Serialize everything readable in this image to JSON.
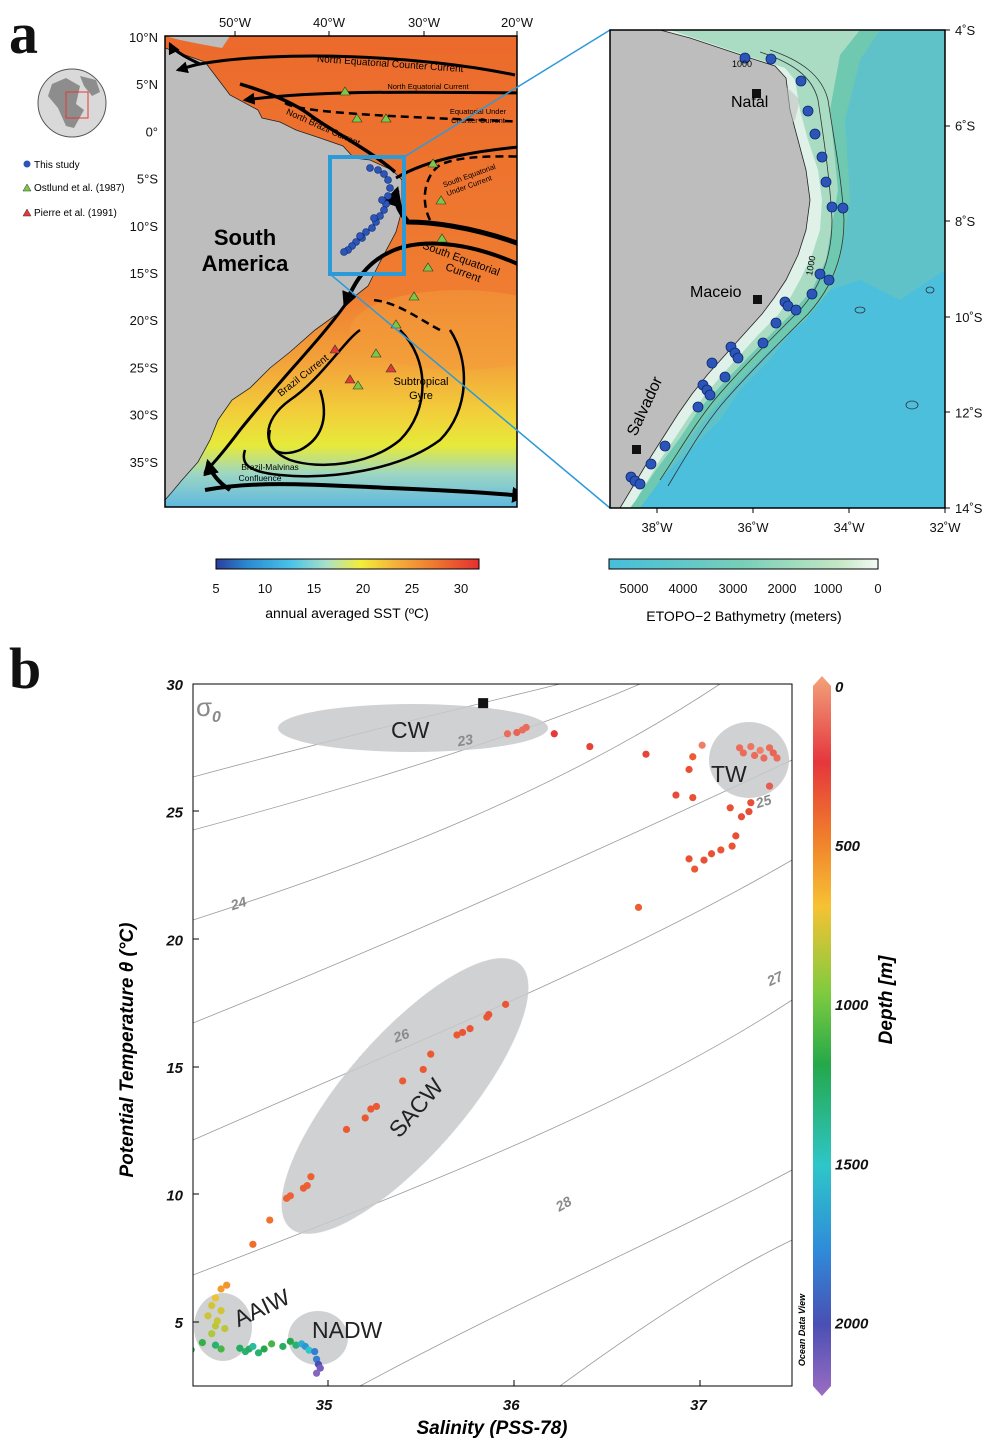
{
  "panel_a": {
    "letter": "a",
    "left_map": {
      "lon_ticks": [
        "50°W",
        "40°W",
        "30°W",
        "20°W"
      ],
      "lat_ticks": [
        "10°N",
        "5°N",
        "0°",
        "5°S",
        "10°S",
        "15°S",
        "20°S",
        "25°S",
        "30°S",
        "35°S"
      ],
      "continent_label": "South America",
      "current_labels": {
        "necc": "North Equatorial Counter Current",
        "nec": "North Equatorial Current",
        "euc": "Equatorial Under Counter Current",
        "nbc": "North Brazil Current",
        "seuc": "South Equatorial Under Current",
        "sec": "South Equatorial Current",
        "bc": "Brazil Current",
        "gyre": "Subtropical Gyre",
        "bmc": "Brazil-Malvinas Confluence"
      },
      "legend": [
        {
          "label": "This study",
          "color": "#2b55b8",
          "shape": "circle"
        },
        {
          "label": "Ostlund et al. (1987)",
          "color": "#7ac943",
          "shape": "triangle"
        },
        {
          "label": "Pierre et al. (1991)",
          "color": "#e53935",
          "shape": "triangle"
        }
      ],
      "sst_colorbar": {
        "ticks": [
          "5",
          "10",
          "15",
          "20",
          "25",
          "30"
        ],
        "label": "annual averaged SST (ºC)"
      }
    },
    "right_map": {
      "lat_ticks": [
        "4˚S",
        "6˚S",
        "8˚S",
        "10˚S",
        "12˚S",
        "14˚S"
      ],
      "lon_ticks": [
        "38˚W",
        "36˚W",
        "34˚W",
        "32˚W"
      ],
      "cities": [
        "Natal",
        "Maceio",
        "Salvador"
      ],
      "contour_labels": [
        "1000",
        "1000"
      ],
      "bathy_colorbar": {
        "ticks": [
          "5000",
          "4000",
          "3000",
          "2000",
          "1000",
          "0"
        ],
        "label": "ETOPO−2 Bathymetry (meters)"
      }
    }
  },
  "panel_b": {
    "letter": "b",
    "density_symbol": "σ",
    "density_sub": "0",
    "water_masses": [
      "CW",
      "TW",
      "SACW",
      "AAIW",
      "NADW"
    ],
    "isopycnal_labels": [
      "23",
      "24",
      "25",
      "26",
      "27",
      "28"
    ],
    "depth_colorbar": {
      "ticks": [
        "0",
        "500",
        "1000",
        "1500",
        "2000"
      ],
      "label": "Depth [m]"
    },
    "software_label": "Ocean Data View",
    "chart_data": {
      "type": "scatter",
      "xlabel": "Salinity (PSS-78)",
      "ylabel": "Potential Temperature θ (°C)",
      "xlim": [
        34.3,
        37.5
      ],
      "ylim": [
        2.5,
        30
      ],
      "xticks": [
        "35",
        "36",
        "37"
      ],
      "yticks": [
        "5",
        "10",
        "15",
        "20",
        "25",
        "30"
      ],
      "series": [
        {
          "points": [
            [
              35.85,
              29.25
            ],
            [
              35.98,
              28.05
            ],
            [
              36.03,
              28.1
            ],
            [
              36.06,
              28.2
            ],
            [
              36.08,
              28.3
            ],
            [
              36.23,
              28.05
            ],
            [
              36.42,
              27.55
            ],
            [
              36.72,
              27.25
            ],
            [
              37.02,
              27.6
            ],
            [
              37.22,
              27.5
            ],
            [
              37.24,
              27.3
            ],
            [
              37.28,
              27.55
            ],
            [
              37.3,
              27.2
            ],
            [
              37.33,
              27.4
            ],
            [
              37.35,
              27.1
            ],
            [
              37.38,
              27.5
            ],
            [
              37.4,
              27.3
            ],
            [
              37.42,
              27.1
            ],
            [
              37.38,
              26.0
            ],
            [
              36.97,
              27.15
            ],
            [
              36.95,
              26.65
            ],
            [
              36.88,
              25.65
            ],
            [
              36.97,
              25.55
            ],
            [
              37.17,
              25.15
            ],
            [
              37.23,
              24.8
            ],
            [
              37.27,
              25.0
            ],
            [
              37.28,
              25.35
            ],
            [
              37.2,
              24.05
            ],
            [
              36.95,
              23.15
            ],
            [
              36.98,
              22.75
            ],
            [
              37.03,
              23.1
            ],
            [
              37.07,
              23.35
            ],
            [
              37.12,
              23.5
            ],
            [
              37.18,
              23.65
            ],
            [
              36.68,
              21.25
            ],
            [
              35.97,
              17.45
            ],
            [
              35.88,
              17.05
            ],
            [
              35.87,
              16.95
            ],
            [
              35.78,
              16.5
            ],
            [
              35.74,
              16.35
            ],
            [
              35.71,
              16.25
            ],
            [
              35.57,
              15.5
            ],
            [
              35.53,
              14.9
            ],
            [
              35.42,
              14.45
            ],
            [
              35.28,
              13.45
            ],
            [
              35.25,
              13.35
            ],
            [
              35.22,
              13.0
            ],
            [
              35.12,
              12.55
            ],
            [
              34.93,
              10.7
            ],
            [
              34.91,
              10.35
            ],
            [
              34.89,
              10.25
            ],
            [
              34.82,
              9.95
            ],
            [
              34.8,
              9.85
            ],
            [
              34.71,
              9.0
            ],
            [
              34.62,
              8.05
            ],
            [
              34.48,
              6.45
            ],
            [
              34.45,
              6.3
            ],
            [
              34.42,
              5.95
            ],
            [
              34.4,
              5.65
            ],
            [
              34.45,
              5.45
            ],
            [
              34.38,
              5.25
            ],
            [
              34.43,
              5.05
            ],
            [
              34.42,
              4.85
            ],
            [
              34.47,
              4.75
            ],
            [
              34.4,
              4.55
            ],
            [
              34.42,
              4.1
            ],
            [
              34.35,
              4.2
            ],
            [
              34.29,
              3.92
            ],
            [
              34.45,
              3.95
            ],
            [
              34.55,
              3.98
            ],
            [
              34.58,
              3.85
            ],
            [
              34.6,
              3.95
            ],
            [
              34.62,
              4.05
            ],
            [
              34.65,
              3.8
            ],
            [
              34.68,
              3.95
            ],
            [
              34.72,
              4.15
            ],
            [
              34.78,
              4.05
            ],
            [
              34.82,
              4.25
            ],
            [
              34.85,
              4.1
            ],
            [
              34.88,
              4.15
            ],
            [
              34.9,
              4.05
            ],
            [
              34.92,
              3.9
            ],
            [
              34.95,
              3.85
            ],
            [
              34.96,
              3.55
            ],
            [
              34.97,
              3.35
            ],
            [
              34.98,
              3.2
            ],
            [
              34.96,
              3.0
            ]
          ],
          "depths_m": [
            0,
            60,
            70,
            60,
            60,
            130,
            180,
            200,
            40,
            60,
            60,
            50,
            60,
            40,
            60,
            60,
            70,
            60,
            80,
            320,
            250,
            230,
            260,
            260,
            240,
            240,
            250,
            250,
            260,
            300,
            260,
            260,
            280,
            270,
            330,
            280,
            270,
            280,
            280,
            280,
            300,
            300,
            300,
            300,
            300,
            300,
            300,
            300,
            340,
            340,
            330,
            350,
            350,
            440,
            410,
            560,
            580,
            720,
            780,
            780,
            790,
            800,
            820,
            820,
            850,
            1300,
            1150,
            1220,
            1100,
            1250,
            1300,
            1250,
            1400,
            1300,
            1200,
            1100,
            1250,
            1200,
            1300,
            1600,
            1700,
            1500,
            1800,
            1800,
            2000,
            2100,
            2150
          ]
        }
      ]
    }
  }
}
